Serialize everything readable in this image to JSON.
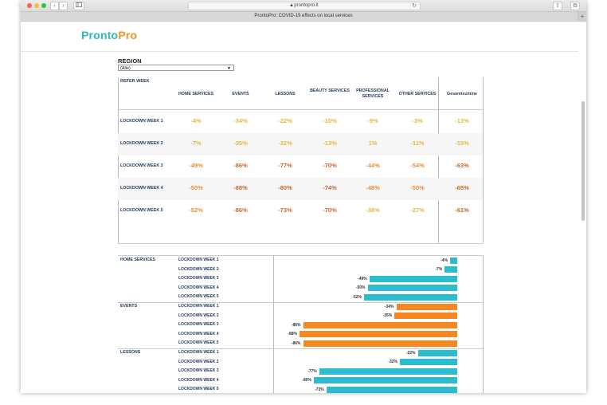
{
  "browser": {
    "url": "prontopro.it",
    "tab_title": "ProntoPro: COVID-19 effects on local services",
    "back": "‹",
    "forward": "›",
    "plus": "+"
  },
  "logo": {
    "part1": "Pronto",
    "part2": "Pro"
  },
  "region": {
    "label": "REGION",
    "value": "(Alle)"
  },
  "table": {
    "corner": "REFER WEEK",
    "columns": [
      "HOME SERVICES",
      "EVENTS",
      "LESSONS",
      "BEAUTY SERVICES",
      "PROFESSIONAL SERVICES",
      "OTHER SERVICES",
      "Gesamtsumme"
    ],
    "rows": [
      {
        "label": "LOCKDOWN WEEK 1",
        "values": [
          "-4%",
          "-34%",
          "-22%",
          "-10%",
          "-9%",
          "-3%",
          "-13%"
        ]
      },
      {
        "label": "LOCKDOWN WEEK 2",
        "values": [
          "-7%",
          "-35%",
          "-32%",
          "-13%",
          "1%",
          "-11%",
          "-15%"
        ]
      },
      {
        "label": "LOCKDOWN WEEK 3",
        "values": [
          "-49%",
          "-86%",
          "-77%",
          "-70%",
          "-44%",
          "-54%",
          "-63%"
        ]
      },
      {
        "label": "LOCKDOWN WEEK 4",
        "values": [
          "-50%",
          "-88%",
          "-80%",
          "-74%",
          "-48%",
          "-50%",
          "-65%"
        ]
      },
      {
        "label": "LOCKDOWN WEEK 5",
        "values": [
          "-52%",
          "-86%",
          "-73%",
          "-70%",
          "-38%",
          "-27%",
          "-61%"
        ]
      }
    ]
  },
  "chart_data": {
    "type": "bar",
    "orientation": "horizontal",
    "groups": [
      {
        "name": "HOME SERVICES",
        "color": "#2bbcd0",
        "weeks": [
          "LOCKDOWN WEEK 1",
          "LOCKDOWN WEEK 2",
          "LOCKDOWN WEEK 3",
          "LOCKDOWN WEEK 4",
          "LOCKDOWN WEEK 5"
        ],
        "values": [
          -4,
          -7,
          -49,
          -50,
          -52
        ]
      },
      {
        "name": "EVENTS",
        "color": "#f7881f",
        "weeks": [
          "LOCKDOWN WEEK 1",
          "LOCKDOWN WEEK 2",
          "LOCKDOWN WEEK 3",
          "LOCKDOWN WEEK 4",
          "LOCKDOWN WEEK 5"
        ],
        "values": [
          -34,
          -35,
          -86,
          -88,
          -86
        ]
      },
      {
        "name": "LESSONS",
        "color": "#2bbcd0",
        "weeks": [
          "LOCKDOWN WEEK 1",
          "LOCKDOWN WEEK 2",
          "LOCKDOWN WEEK 3",
          "LOCKDOWN WEEK 4",
          "LOCKDOWN WEEK 5"
        ],
        "values": [
          -22,
          -32,
          -77,
          -80,
          -73
        ]
      }
    ],
    "xlim": [
      -100,
      0
    ]
  },
  "colors": {
    "positive_small": "#e6b84a",
    "mid": "#e6913a",
    "strong": "#c86a2a"
  }
}
